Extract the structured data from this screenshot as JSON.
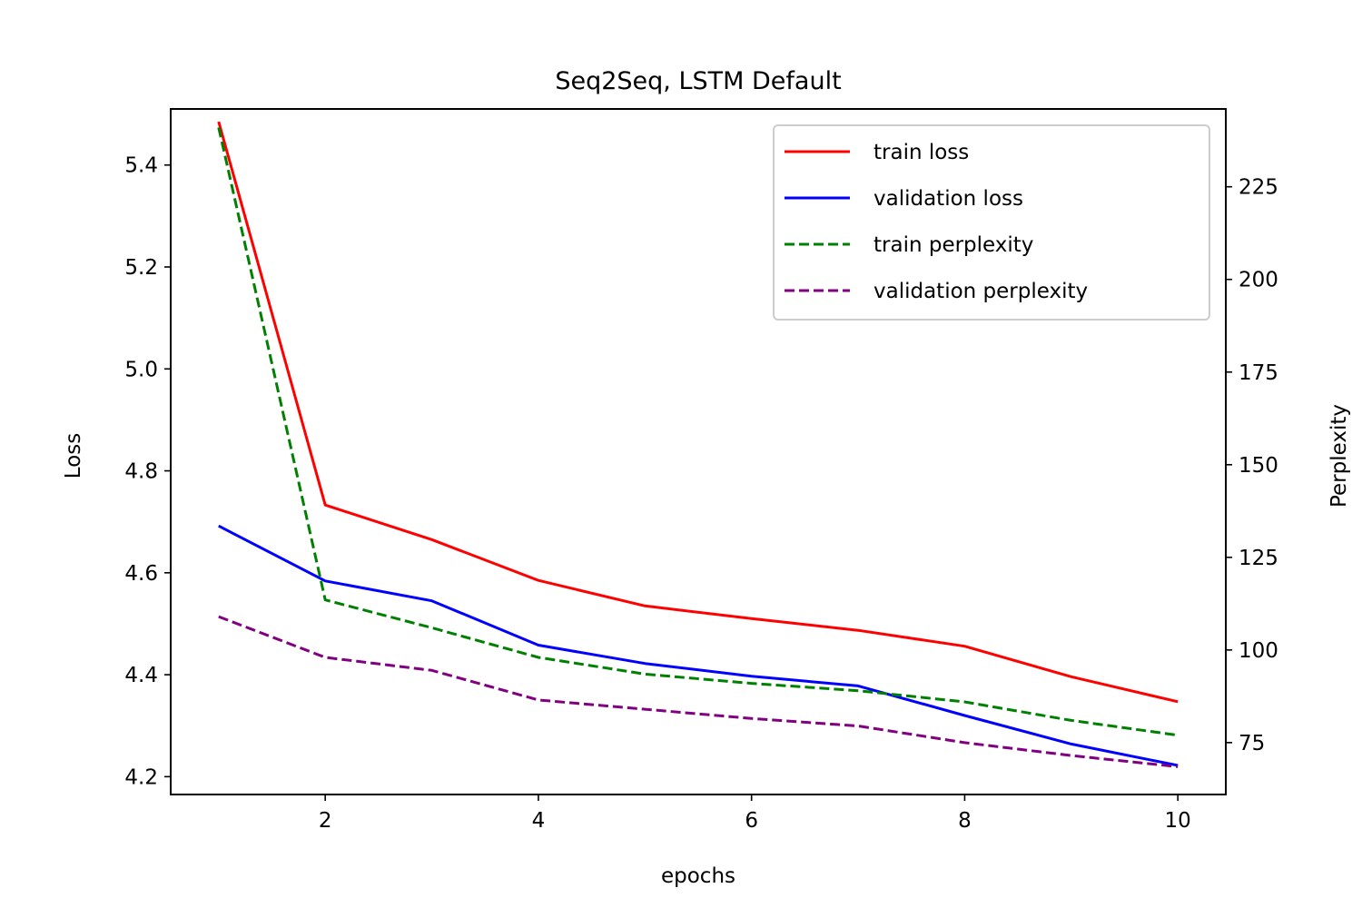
{
  "chart_data": {
    "type": "line",
    "title": "Seq2Seq, LSTM Default",
    "xlabel": "epochs",
    "ylabel": "Loss",
    "y2label": "Perplexity",
    "x": [
      1,
      2,
      3,
      4,
      5,
      6,
      7,
      8,
      9,
      10
    ],
    "xlim": [
      0.55,
      10.45
    ],
    "ylim": [
      4.165,
      5.51
    ],
    "y2lim": [
      61,
      246
    ],
    "xticks": [
      2,
      4,
      6,
      8,
      10
    ],
    "yticks": [
      "4.2",
      "4.4",
      "4.6",
      "4.8",
      "5.0",
      "5.2",
      "5.4"
    ],
    "y2ticks": [
      75,
      100,
      125,
      150,
      175,
      200,
      225
    ],
    "grid": false,
    "legend_position": "top-right",
    "series": [
      {
        "name": "train loss",
        "axis": "left",
        "color": "#ff0000",
        "dash": "solid",
        "values": [
          5.485,
          4.733,
          4.665,
          4.585,
          4.535,
          4.51,
          4.487,
          4.456,
          4.396,
          4.347
        ]
      },
      {
        "name": "validation loss",
        "axis": "left",
        "color": "#0000ff",
        "dash": "solid",
        "values": [
          4.692,
          4.584,
          4.545,
          4.458,
          4.422,
          4.397,
          4.378,
          4.32,
          4.264,
          4.222
        ]
      },
      {
        "name": "train perplexity",
        "axis": "right",
        "color": "#008000",
        "dash": "dashed",
        "values": [
          241,
          113.5,
          106,
          98,
          93.5,
          91,
          89,
          86,
          81,
          77
        ]
      },
      {
        "name": "validation perplexity",
        "axis": "right",
        "color": "#800080",
        "dash": "dashed",
        "values": [
          109,
          98,
          94.5,
          86.5,
          84,
          81.5,
          79.5,
          75,
          71.5,
          68.5
        ]
      }
    ]
  }
}
